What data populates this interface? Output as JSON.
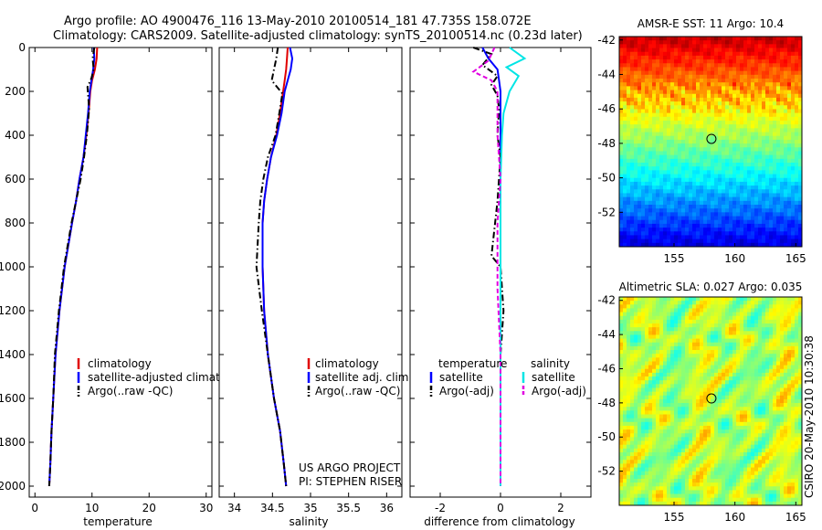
{
  "figure": {
    "title_line1": "Argo profile: AO 4900476_116 13-May-2010 20100514_181 47.735S 158.072E",
    "title_line2": "Climatology: CARS2009. Satellite-adjusted climatology: synTS_20100514.nc (0.23d later)",
    "credit": "CSIRO 20-May-2010 10:30:38",
    "project_line1": "US ARGO PROJECT",
    "project_line2": "PI: STEPHEN RISER"
  },
  "colors": {
    "climatology": "#e00000",
    "satellite": "#0000ff",
    "argo": "#000000",
    "salinity_satellite": "#00e5e5",
    "salinity_argo": "#e000e0",
    "marker": "#000000"
  },
  "chart_data": [
    {
      "type": "line",
      "panel": "temperature",
      "xlabel": "temperature",
      "ylabel": "",
      "xlim": [
        -1,
        31
      ],
      "ylim": [
        2050,
        0
      ],
      "y_reversed": true,
      "xticks": [
        "0",
        "10",
        "20",
        "30"
      ],
      "xtick_values": [
        0,
        10,
        20,
        30
      ],
      "yticks": [
        "0",
        "200",
        "400",
        "600",
        "800",
        "1000",
        "1200",
        "1400",
        "1600",
        "1800",
        "2000"
      ],
      "ytick_values": [
        0,
        200,
        400,
        600,
        800,
        1000,
        1200,
        1400,
        1600,
        1800,
        2000
      ],
      "legend": [
        "climatology",
        "satellite-adjusted climatology",
        "Argo(..raw -QC)"
      ],
      "series": [
        {
          "name": "climatology",
          "style": "solid",
          "color_key": "climatology",
          "x": [
            10.9,
            10.8,
            10.5,
            10.0,
            9.7,
            9.4,
            9.0,
            8.5,
            7.8,
            7.2,
            6.5,
            5.2,
            4.3,
            3.6,
            3.2,
            2.9,
            2.7,
            2.5
          ],
          "y": [
            0,
            50,
            100,
            150,
            200,
            300,
            400,
            500,
            600,
            700,
            800,
            1000,
            1200,
            1400,
            1600,
            1750,
            1900,
            2000
          ]
        },
        {
          "name": "satellite-adjusted climatology",
          "style": "solid",
          "color_key": "satellite",
          "x": [
            10.3,
            10.4,
            10.2,
            9.9,
            9.6,
            9.3,
            8.9,
            8.5,
            7.8,
            7.2,
            6.5,
            5.2,
            4.3,
            3.6,
            3.2,
            2.9,
            2.7,
            2.5
          ],
          "y": [
            0,
            50,
            100,
            150,
            200,
            300,
            400,
            500,
            600,
            700,
            800,
            1000,
            1200,
            1400,
            1600,
            1750,
            1900,
            2000
          ]
        },
        {
          "name": "Argo(..raw -QC)",
          "style": "dashdot",
          "color_key": "argo",
          "x": [
            10.4,
            10.1,
            10.3,
            9.9,
            9.2,
            9.5,
            9.1,
            8.6,
            8.0,
            7.2,
            6.4,
            5.1,
            4.2,
            3.5,
            3.2,
            2.9,
            2.7,
            2.5
          ],
          "y": [
            0,
            50,
            100,
            140,
            180,
            280,
            400,
            500,
            600,
            700,
            800,
            1000,
            1200,
            1400,
            1600,
            1750,
            1900,
            2000
          ]
        }
      ]
    },
    {
      "type": "line",
      "panel": "salinity",
      "xlabel": "salinity",
      "ylabel": "",
      "xlim": [
        33.8,
        36.2
      ],
      "ylim": [
        2050,
        0
      ],
      "y_reversed": true,
      "xticks": [
        "34",
        "34.5",
        "35",
        "35.5",
        "36"
      ],
      "xtick_values": [
        34,
        34.5,
        35,
        35.5,
        36
      ],
      "legend": [
        "climatology",
        "satellite adj. clim.",
        "Argo(..raw -QC)"
      ],
      "series": [
        {
          "name": "climatology",
          "style": "solid",
          "color_key": "climatology",
          "x": [
            34.7,
            34.69,
            34.68,
            34.66,
            34.64,
            34.6,
            34.55,
            34.48,
            34.43,
            34.39,
            34.37,
            34.37,
            34.39,
            34.44,
            34.52,
            34.6,
            34.65,
            34.68
          ],
          "y": [
            0,
            50,
            100,
            150,
            200,
            300,
            400,
            500,
            600,
            700,
            800,
            1000,
            1200,
            1400,
            1600,
            1750,
            1900,
            2000
          ]
        },
        {
          "name": "satellite adj. clim.",
          "style": "solid",
          "color_key": "satellite",
          "x": [
            34.73,
            34.76,
            34.74,
            34.7,
            34.66,
            34.62,
            34.56,
            34.48,
            34.43,
            34.39,
            34.37,
            34.37,
            34.39,
            34.44,
            34.52,
            34.6,
            34.65,
            34.68
          ],
          "y": [
            0,
            50,
            100,
            150,
            200,
            300,
            400,
            500,
            600,
            700,
            800,
            1000,
            1200,
            1400,
            1600,
            1750,
            1900,
            2000
          ]
        },
        {
          "name": "Argo(..raw -QC)",
          "style": "dashdot",
          "color_key": "argo",
          "x": [
            34.57,
            34.55,
            34.52,
            34.49,
            34.63,
            34.59,
            34.54,
            34.44,
            34.38,
            34.34,
            34.32,
            34.29,
            34.36,
            34.44,
            34.52,
            34.6,
            34.65,
            34.68
          ],
          "y": [
            0,
            50,
            100,
            150,
            210,
            300,
            400,
            500,
            600,
            700,
            800,
            1000,
            1200,
            1400,
            1600,
            1750,
            1900,
            2000
          ]
        }
      ]
    },
    {
      "type": "line",
      "panel": "difference",
      "xlabel": "difference from climatology",
      "ylabel": "",
      "xlim": [
        -3,
        3
      ],
      "ylim": [
        2050,
        0
      ],
      "y_reversed": true,
      "xticks": [
        "-2",
        "0",
        "2"
      ],
      "xtick_values": [
        -2,
        0,
        2
      ],
      "legend_groups": [
        {
          "heading": "temperature",
          "items": [
            "satellite",
            "Argo(-adj)"
          ]
        },
        {
          "heading": "salinity",
          "items": [
            "satellite",
            "Argo(-adj)"
          ]
        }
      ],
      "series": [
        {
          "name": "temperature satellite",
          "style": "solid",
          "color_key": "satellite",
          "x": [
            -0.6,
            -0.4,
            -0.1,
            -0.05,
            0.0,
            0.0,
            0.0,
            0.0
          ],
          "y": [
            0,
            50,
            100,
            150,
            200,
            400,
            1000,
            2000
          ]
        },
        {
          "name": "temperature Argo(-adj)",
          "style": "dashdot",
          "color_key": "argo",
          "x": [
            -0.9,
            -0.3,
            -0.6,
            -0.1,
            -0.3,
            -0.1,
            -0.05,
            -0.1,
            0.0,
            -0.1,
            -0.3,
            0.0,
            0.1,
            0.0,
            0.0,
            0.0
          ],
          "y": [
            0,
            30,
            80,
            130,
            170,
            220,
            280,
            400,
            500,
            700,
            950,
            1000,
            1200,
            1400,
            1600,
            2000
          ]
        },
        {
          "name": "salinity satellite",
          "style": "solid",
          "color_key": "salinity_satellite",
          "x": [
            0.3,
            0.8,
            0.2,
            0.6,
            0.3,
            0.1,
            0.05,
            0.0,
            0.0,
            0.0
          ],
          "y": [
            0,
            50,
            90,
            130,
            200,
            300,
            400,
            600,
            1000,
            2000
          ]
        },
        {
          "name": "salinity Argo(-adj)",
          "style": "dashed",
          "color_key": "salinity_argo",
          "x": [
            -0.2,
            -0.4,
            -0.9,
            -0.3,
            -0.1,
            -0.1,
            0.0,
            -0.1,
            -0.1,
            -0.1,
            0.0,
            0.0,
            0.0
          ],
          "y": [
            0,
            60,
            110,
            150,
            200,
            400,
            600,
            800,
            1000,
            1100,
            1400,
            1600,
            2000
          ]
        }
      ]
    },
    {
      "type": "heatmap",
      "panel": "sst-map",
      "title": "AMSR-E SST: 11 Argo: 10.4",
      "xlim": [
        150.5,
        165.5
      ],
      "ylim": [
        -54,
        -41.8
      ],
      "xticks": [
        "155",
        "160",
        "165"
      ],
      "xtick_values": [
        155,
        160,
        165
      ],
      "yticks": [
        "-42",
        "-44",
        "-46",
        "-48",
        "-50",
        "-52"
      ],
      "ytick_values": [
        -42,
        -44,
        -46,
        -48,
        -50,
        -52
      ],
      "colorscale": "jet",
      "marker": {
        "lon": 158.07,
        "lat": -47.74
      }
    },
    {
      "type": "heatmap",
      "panel": "sla-map",
      "title": "Altimetric SLA: 0.027 Argo: 0.035",
      "xlim": [
        150.5,
        165.5
      ],
      "ylim": [
        -54,
        -41.8
      ],
      "xticks": [
        "155",
        "160",
        "165"
      ],
      "xtick_values": [
        155,
        160,
        165
      ],
      "yticks": [
        "-42",
        "-44",
        "-46",
        "-48",
        "-50",
        "-52"
      ],
      "ytick_values": [
        -42,
        -44,
        -46,
        -48,
        -50,
        -52
      ],
      "colorscale": "jet",
      "marker": {
        "lon": 158.07,
        "lat": -47.74
      }
    }
  ]
}
